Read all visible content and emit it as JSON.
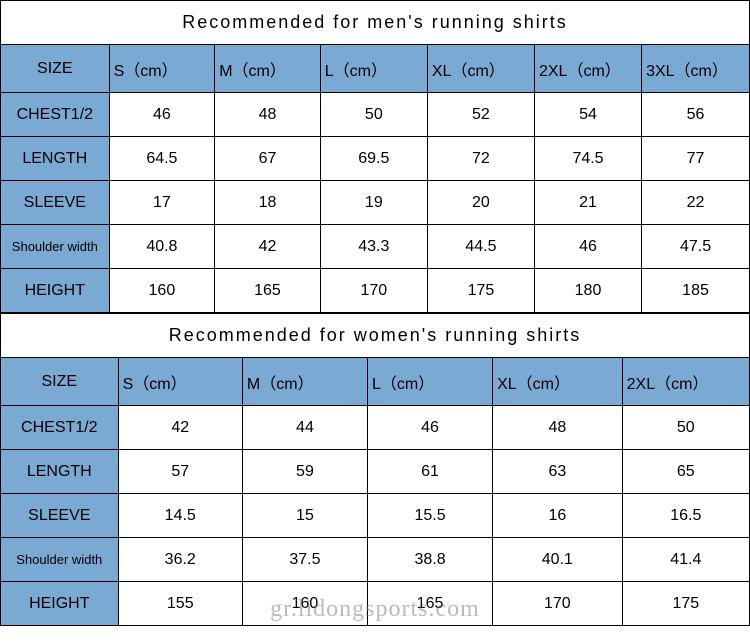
{
  "colors": {
    "header_bg": "#7aa9d4",
    "label_bg": "#7aa9d4",
    "data_bg": "#ffffff",
    "border": "#000000",
    "title_bg": "#ffffff"
  },
  "mens": {
    "title": "Recommended  for  men's  running  shirts",
    "size_label": "SIZE",
    "col_widths_pct": [
      14.5,
      14.1,
      14.1,
      14.3,
      14.3,
      14.3,
      14.4
    ],
    "columns": [
      "S（cm）",
      "M（cm）",
      "L（cm）",
      "XL（cm）",
      "2XL（cm）",
      "3XL（cm）"
    ],
    "rows": [
      {
        "label": "CHEST1/2",
        "values": [
          "46",
          "48",
          "50",
          "52",
          "54",
          "56"
        ]
      },
      {
        "label": "LENGTH",
        "values": [
          "64.5",
          "67",
          "69.5",
          "72",
          "74.5",
          "77"
        ]
      },
      {
        "label": "SLEEVE",
        "values": [
          "17",
          "18",
          "19",
          "20",
          "21",
          "22"
        ]
      },
      {
        "label": "Shoulder width",
        "values": [
          "40.8",
          "42",
          "43.3",
          "44.5",
          "46",
          "47.5"
        ]
      },
      {
        "label": "HEIGHT",
        "values": [
          "160",
          "165",
          "170",
          "175",
          "180",
          "185"
        ]
      }
    ]
  },
  "womens": {
    "title": "Recommended  for  women's  running  shirts",
    "size_label": "SIZE",
    "col_widths_pct": [
      15.7,
      16.6,
      16.7,
      16.7,
      17.3,
      17.0
    ],
    "columns": [
      "S（cm）",
      "M（cm）",
      "L（cm）",
      "XL（cm）",
      "2XL（cm）"
    ],
    "rows": [
      {
        "label": "CHEST1/2",
        "values": [
          "42",
          "44",
          "46",
          "48",
          "50"
        ]
      },
      {
        "label": "LENGTH",
        "values": [
          "57",
          "59",
          "61",
          "63",
          "65"
        ]
      },
      {
        "label": "SLEEVE",
        "values": [
          "14.5",
          "15",
          "15.5",
          "16",
          "16.5"
        ]
      },
      {
        "label": "Shoulder width",
        "values": [
          "36.2",
          "37.5",
          "38.8",
          "40.1",
          "41.4"
        ]
      },
      {
        "label": "HEIGHT",
        "values": [
          "155",
          "160",
          "165",
          "170",
          "175"
        ]
      }
    ]
  },
  "watermark_text": "gr.lidongsports.com"
}
